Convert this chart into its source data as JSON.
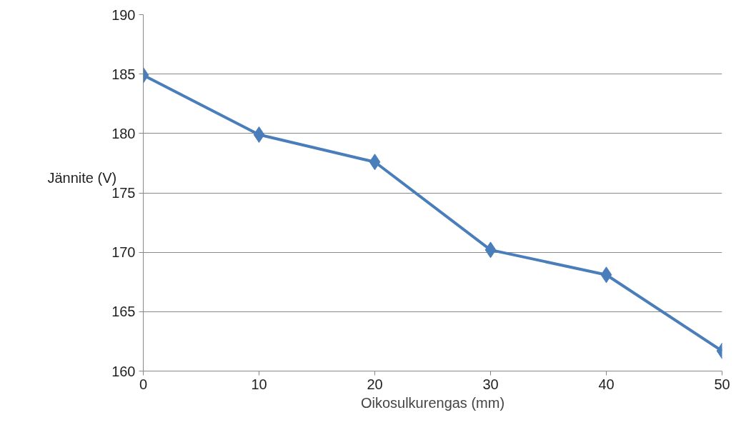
{
  "chart_data": {
    "type": "line",
    "xlabel": "Oikosulkurengas (mm)",
    "ylabel": "Jännite (V)",
    "x": [
      0,
      10,
      20,
      30,
      40,
      50
    ],
    "series": [
      {
        "color": "#4a7ebb",
        "values": [
          184.9,
          179.9,
          177.6,
          170.2,
          168.1,
          161.7
        ]
      }
    ],
    "xlim": [
      0,
      50
    ],
    "xticks": [
      0,
      10,
      20,
      30,
      40,
      50
    ],
    "ylim": [
      160,
      190
    ],
    "yticks": [
      160,
      165,
      170,
      175,
      180,
      185,
      190
    ],
    "grid": "y",
    "marker": "diamond",
    "line_style": "solid"
  }
}
